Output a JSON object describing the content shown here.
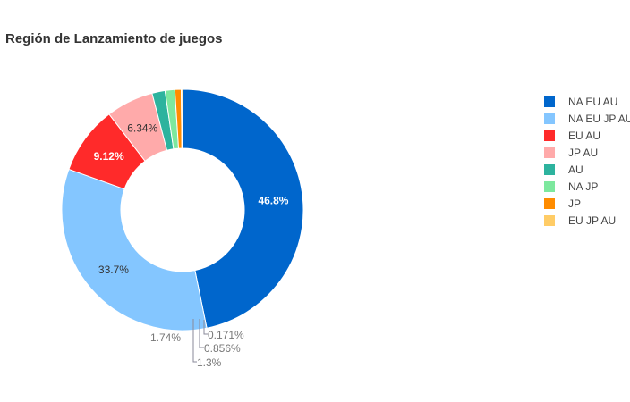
{
  "chart_data": {
    "type": "pie",
    "title": "Región de Lanzamiento de juegos",
    "donut": true,
    "legend_position": "right",
    "slices": [
      {
        "label": "NA EU AU",
        "value": 46.8,
        "display": "46.8%",
        "color": "#0066cc",
        "label_color": "#ffffff",
        "label_bold": true
      },
      {
        "label": "NA EU JP AU",
        "value": 33.7,
        "display": "33.7%",
        "color": "#84c6ff",
        "label_color": "#333333",
        "label_bold": false
      },
      {
        "label": "EU AU",
        "value": 9.12,
        "display": "9.12%",
        "color": "#ff2a2a",
        "label_color": "#ffffff",
        "label_bold": true
      },
      {
        "label": "JP AU",
        "value": 6.34,
        "display": "6.34%",
        "color": "#ffaaaa",
        "label_color": "#333333",
        "label_bold": false
      },
      {
        "label": "AU",
        "value": 1.74,
        "display": "1.74%",
        "color": "#2db39e",
        "label_color": "#777777",
        "label_bold": false
      },
      {
        "label": "NA JP",
        "value": 1.3,
        "display": "1.3%",
        "color": "#7de89e",
        "label_color": "#777777",
        "label_bold": false
      },
      {
        "label": "JP",
        "value": 0.856,
        "display": "0.856%",
        "color": "#ff8c00",
        "label_color": "#777777",
        "label_bold": false
      },
      {
        "label": "EU JP AU",
        "value": 0.171,
        "display": "0.171%",
        "color": "#ffcc66",
        "label_color": "#777777",
        "label_bold": false
      }
    ]
  }
}
